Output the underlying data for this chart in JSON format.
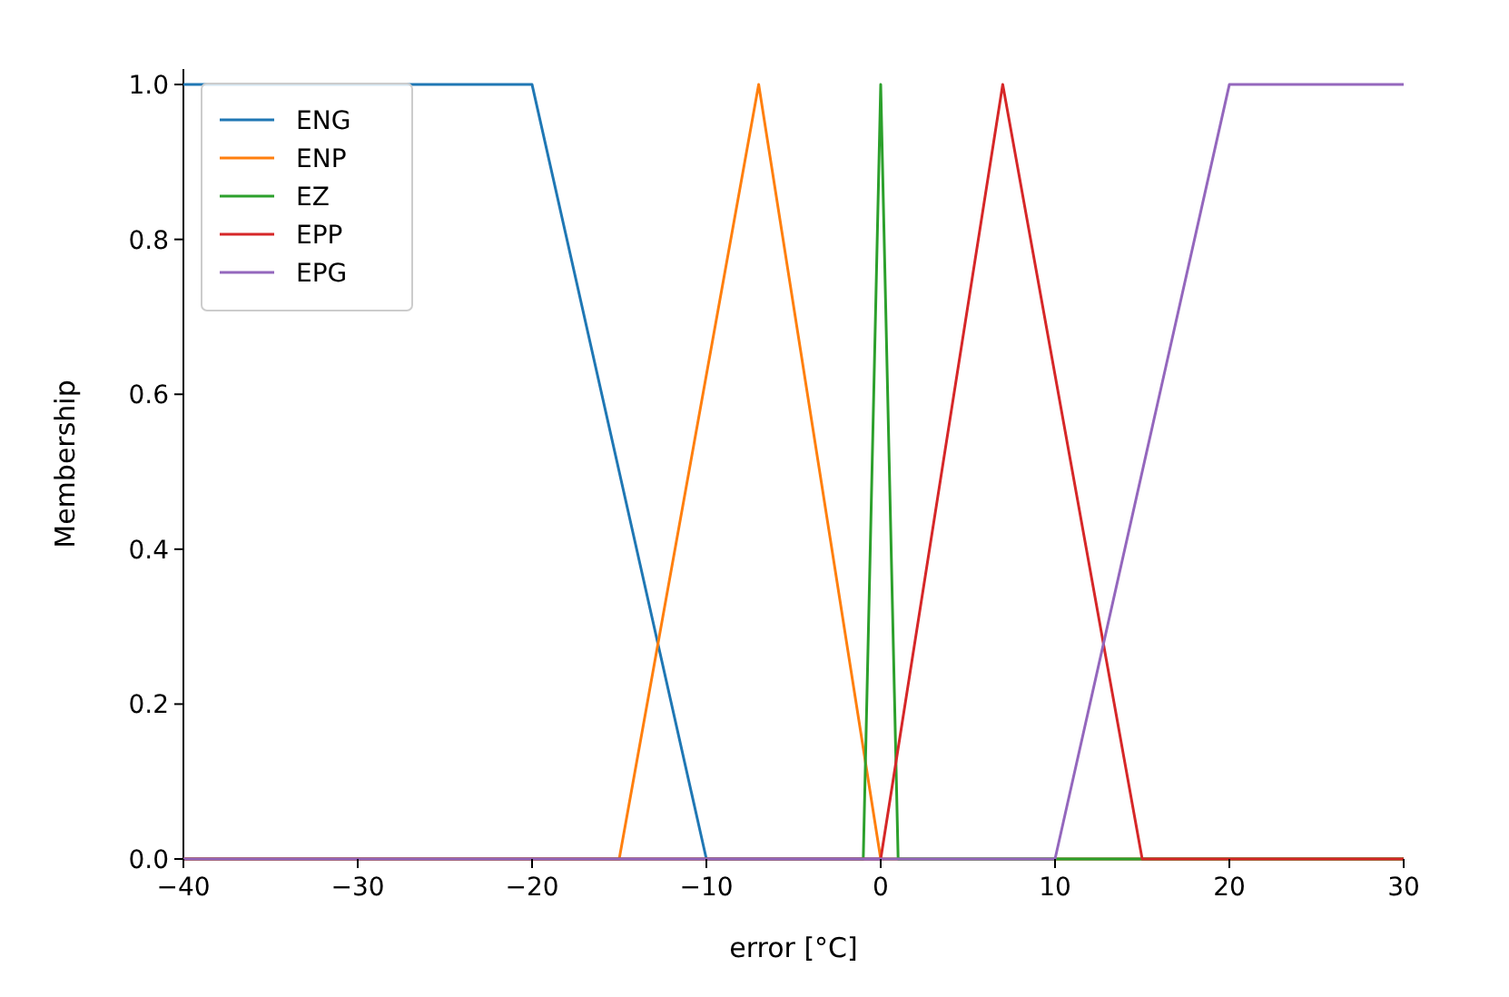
{
  "chart_data": {
    "type": "line",
    "xlabel": "error [°C]",
    "ylabel": "Membership",
    "xlim": [
      -40,
      30
    ],
    "xticks": [
      {
        "value": -40,
        "label": "−40"
      },
      {
        "value": -30,
        "label": "−30"
      },
      {
        "value": -20,
        "label": "−20"
      },
      {
        "value": -10,
        "label": "−10"
      },
      0,
      10,
      20,
      30
    ],
    "ylim": [
      0,
      1.02
    ],
    "yticks": [
      {
        "value": 0,
        "label": "0.0"
      },
      {
        "value": 0.2,
        "label": "0.2"
      },
      {
        "value": 0.4,
        "label": "0.4"
      },
      {
        "value": 0.6,
        "label": "0.6"
      },
      {
        "value": 0.8,
        "label": "0.8"
      },
      {
        "value": 1,
        "label": "1.0"
      }
    ],
    "legend": "top left",
    "grid": false,
    "marker": "none",
    "line_style": "solid",
    "series": [
      {
        "name": "ENG",
        "color": "#1f77b4",
        "x": [
          -40,
          -20,
          -10,
          30
        ],
        "values": [
          1,
          1,
          0,
          0
        ]
      },
      {
        "name": "ENP",
        "color": "#ff7f0e",
        "x": [
          -40,
          -15,
          -7,
          0,
          30
        ],
        "values": [
          0,
          0,
          1,
          0,
          0
        ]
      },
      {
        "name": "EZ",
        "color": "#2ca02c",
        "x": [
          -40,
          -1,
          0,
          1,
          30
        ],
        "values": [
          0,
          0,
          1,
          0,
          0
        ]
      },
      {
        "name": "EPP",
        "color": "#d62728",
        "x": [
          -40,
          0,
          7,
          15,
          30
        ],
        "values": [
          0,
          0,
          1,
          0,
          0
        ]
      },
      {
        "name": "EPG",
        "color": "#9467bd",
        "x": [
          -40,
          10,
          20,
          30
        ],
        "values": [
          0,
          0,
          1,
          1
        ]
      }
    ]
  }
}
